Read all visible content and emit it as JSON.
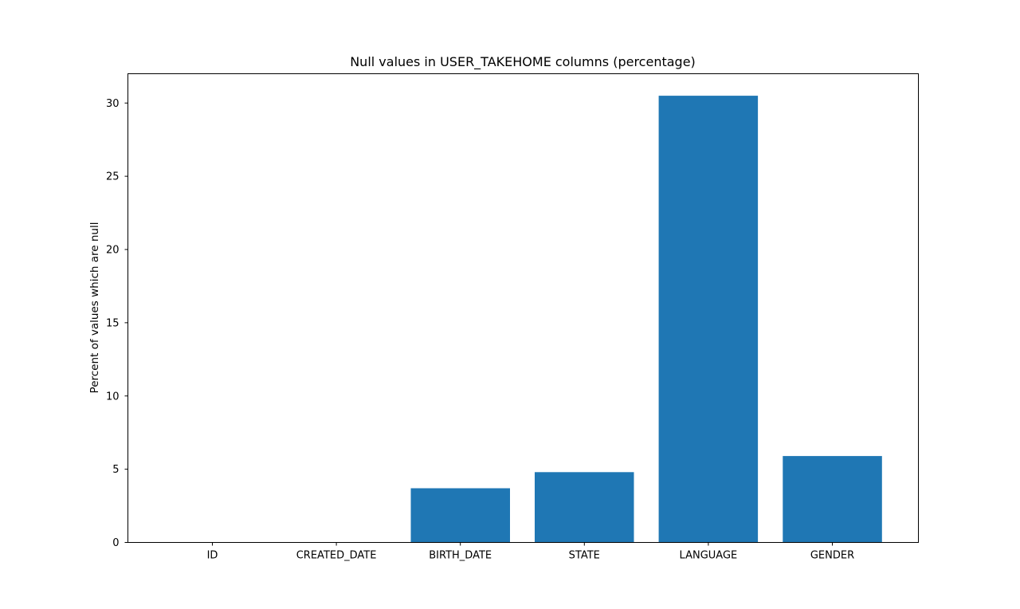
{
  "chart_data": {
    "type": "bar",
    "title": "Null values in USER_TAKEHOME columns (percentage)",
    "xlabel": "",
    "ylabel": "Percent of values which are null",
    "categories": [
      "ID",
      "CREATED_DATE",
      "BIRTH_DATE",
      "STATE",
      "LANGUAGE",
      "GENDER"
    ],
    "values": [
      0,
      0,
      3.7,
      4.8,
      30.5,
      5.9
    ],
    "ylim": [
      0,
      32
    ],
    "yticks": [
      0,
      5,
      10,
      15,
      20,
      25,
      30
    ],
    "grid": false,
    "legend": false,
    "bar_color": "#1f77b4"
  }
}
